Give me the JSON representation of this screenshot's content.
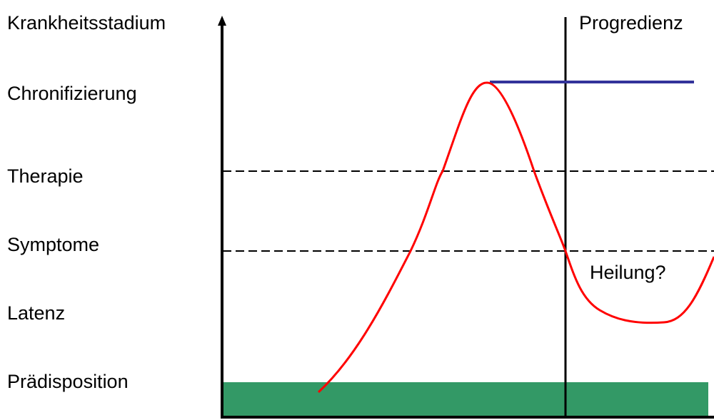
{
  "y_axis_title": "Krankheitsstadium",
  "stages": {
    "chronifizierung": "Chronifizierung",
    "therapie": "Therapie",
    "symptome": "Symptome",
    "latenz": "Latenz",
    "praedisposition": "Prädisposition"
  },
  "annotations": {
    "progredienz": "Progredienz",
    "heilung": "Heilung?"
  },
  "colors": {
    "curve": "#ff0000",
    "plateau": "#33339a",
    "praedisposition_band": "#339966",
    "axes": "#000000",
    "threshold_lines": "#000000"
  }
}
